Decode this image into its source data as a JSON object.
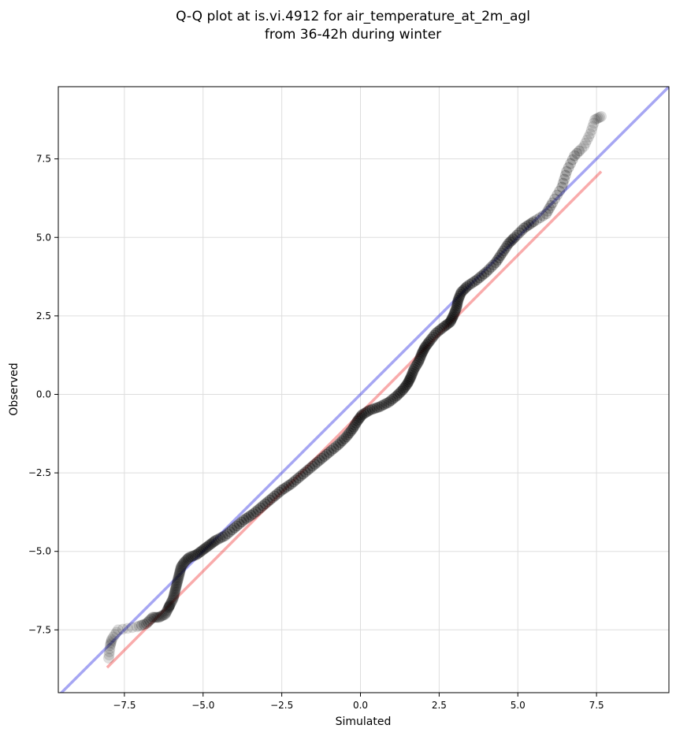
{
  "chart_data": {
    "type": "scatter",
    "title_lines": [
      "Q-Q plot at is.vi.4912 for air_temperature_at_2m_agl",
      "from 36-42h during winter"
    ],
    "xlabel": "Simulated",
    "ylabel": "Observed",
    "xlim": [
      -9.6,
      9.8
    ],
    "ylim": [
      -9.5,
      9.8
    ],
    "x_ticks": [
      -7.5,
      -5.0,
      -2.5,
      0.0,
      2.5,
      5.0,
      7.5
    ],
    "y_ticks": [
      -7.5,
      -5.0,
      -2.5,
      0.0,
      2.5,
      5.0,
      7.5
    ],
    "x_tick_labels": [
      "−7.5",
      "−5.0",
      "−2.5",
      "0.0",
      "2.5",
      "5.0",
      "7.5"
    ],
    "y_tick_labels": [
      "−7.5",
      "−5.0",
      "−2.5",
      "0.0",
      "2.5",
      "5.0",
      "7.5"
    ],
    "grid": true,
    "colors": {
      "identity_line": "#0000dd",
      "fit_line": "#ee2222",
      "points": "#000000",
      "grid": "#dddddd"
    },
    "identity_line": {
      "x": [
        -9.6,
        9.8
      ],
      "y": [
        -9.6,
        9.8
      ]
    },
    "fit_line": {
      "x": [
        -8.05,
        7.65
      ],
      "y": [
        -8.7,
        7.1
      ]
    },
    "quantiles": [
      {
        "x": -8.0,
        "y": -8.4
      },
      {
        "x": -7.95,
        "y": -8.0
      },
      {
        "x": -7.9,
        "y": -7.8
      },
      {
        "x": -7.7,
        "y": -7.5
      },
      {
        "x": -7.1,
        "y": -7.4
      },
      {
        "x": -6.8,
        "y": -7.3
      },
      {
        "x": -6.6,
        "y": -7.1
      },
      {
        "x": -6.4,
        "y": -7.1
      },
      {
        "x": -6.2,
        "y": -7.0
      },
      {
        "x": -6.1,
        "y": -6.8
      },
      {
        "x": -6.05,
        "y": -6.7
      },
      {
        "x": -5.95,
        "y": -6.5
      },
      {
        "x": -5.9,
        "y": -6.3
      },
      {
        "x": -5.85,
        "y": -6.1
      },
      {
        "x": -5.8,
        "y": -5.9
      },
      {
        "x": -5.75,
        "y": -5.7
      },
      {
        "x": -5.7,
        "y": -5.5
      },
      {
        "x": -5.6,
        "y": -5.35
      },
      {
        "x": -5.45,
        "y": -5.2
      },
      {
        "x": -5.2,
        "y": -5.1
      },
      {
        "x": -5.0,
        "y": -4.95
      },
      {
        "x": -4.8,
        "y": -4.8
      },
      {
        "x": -4.6,
        "y": -4.65
      },
      {
        "x": -4.3,
        "y": -4.5
      },
      {
        "x": -4.0,
        "y": -4.25
      },
      {
        "x": -3.7,
        "y": -4.0
      },
      {
        "x": -3.4,
        "y": -3.8
      },
      {
        "x": -3.1,
        "y": -3.55
      },
      {
        "x": -2.8,
        "y": -3.3
      },
      {
        "x": -2.5,
        "y": -3.05
      },
      {
        "x": -2.2,
        "y": -2.85
      },
      {
        "x": -1.9,
        "y": -2.6
      },
      {
        "x": -1.6,
        "y": -2.35
      },
      {
        "x": -1.3,
        "y": -2.1
      },
      {
        "x": -1.0,
        "y": -1.85
      },
      {
        "x": -0.7,
        "y": -1.6
      },
      {
        "x": -0.45,
        "y": -1.35
      },
      {
        "x": -0.25,
        "y": -1.1
      },
      {
        "x": -0.1,
        "y": -0.85
      },
      {
        "x": 0.05,
        "y": -0.65
      },
      {
        "x": 0.3,
        "y": -0.5
      },
      {
        "x": 0.6,
        "y": -0.4
      },
      {
        "x": 0.9,
        "y": -0.25
      },
      {
        "x": 1.15,
        "y": -0.05
      },
      {
        "x": 1.35,
        "y": 0.15
      },
      {
        "x": 1.5,
        "y": 0.35
      },
      {
        "x": 1.6,
        "y": 0.55
      },
      {
        "x": 1.7,
        "y": 0.8
      },
      {
        "x": 1.85,
        "y": 1.05
      },
      {
        "x": 1.95,
        "y": 1.3
      },
      {
        "x": 2.05,
        "y": 1.5
      },
      {
        "x": 2.2,
        "y": 1.7
      },
      {
        "x": 2.4,
        "y": 1.95
      },
      {
        "x": 2.65,
        "y": 2.15
      },
      {
        "x": 2.85,
        "y": 2.3
      },
      {
        "x": 2.95,
        "y": 2.5
      },
      {
        "x": 3.05,
        "y": 2.75
      },
      {
        "x": 3.1,
        "y": 3.0
      },
      {
        "x": 3.2,
        "y": 3.25
      },
      {
        "x": 3.4,
        "y": 3.45
      },
      {
        "x": 3.7,
        "y": 3.65
      },
      {
        "x": 4.0,
        "y": 3.9
      },
      {
        "x": 4.3,
        "y": 4.2
      },
      {
        "x": 4.5,
        "y": 4.5
      },
      {
        "x": 4.7,
        "y": 4.8
      },
      {
        "x": 4.9,
        "y": 5.0
      },
      {
        "x": 5.2,
        "y": 5.3
      },
      {
        "x": 5.5,
        "y": 5.5
      },
      {
        "x": 5.9,
        "y": 5.75
      },
      {
        "x": 6.1,
        "y": 6.1
      },
      {
        "x": 6.4,
        "y": 6.6
      },
      {
        "x": 6.55,
        "y": 7.1
      },
      {
        "x": 6.8,
        "y": 7.6
      },
      {
        "x": 7.1,
        "y": 7.9
      },
      {
        "x": 7.3,
        "y": 8.3
      },
      {
        "x": 7.45,
        "y": 8.75
      },
      {
        "x": 7.65,
        "y": 8.85
      }
    ]
  }
}
